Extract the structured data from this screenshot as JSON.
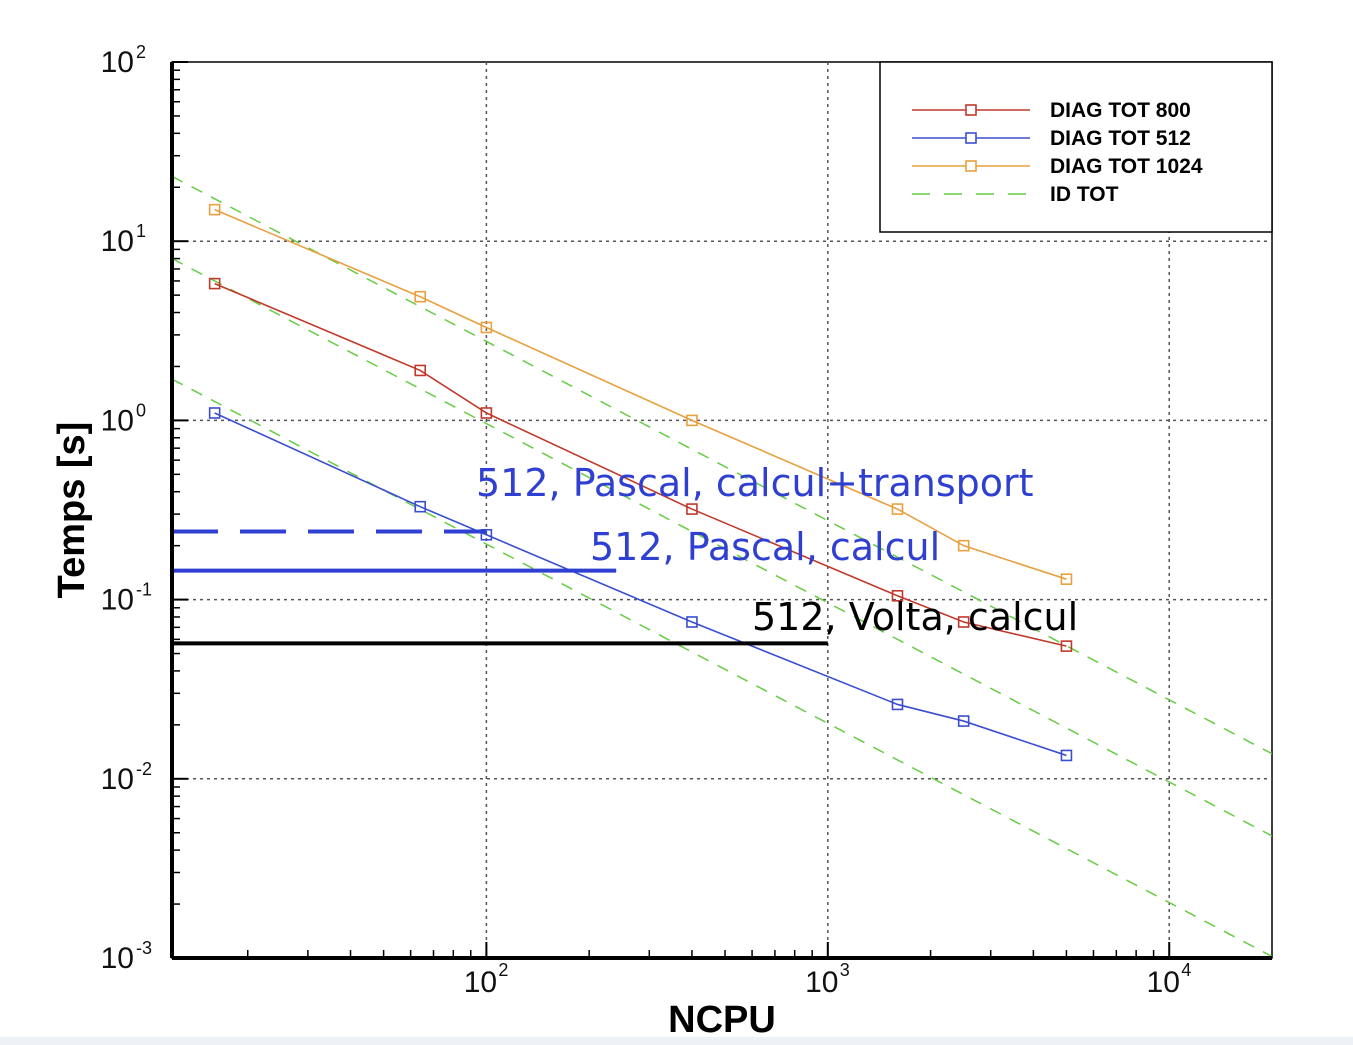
{
  "chart_data": {
    "type": "line",
    "xlabel": "NCPU",
    "ylabel": "Temps [s]",
    "x_scale": "log",
    "y_scale": "log",
    "xlim": [
      12,
      20000
    ],
    "ylim": [
      0.001,
      100
    ],
    "grid": true,
    "legend_placement": "top-right",
    "x_ticks": [
      {
        "value": 100,
        "base": "10",
        "exp": "2"
      },
      {
        "value": 1000,
        "base": "10",
        "exp": "3"
      },
      {
        "value": 10000,
        "base": "10",
        "exp": "4"
      }
    ],
    "y_ticks": [
      {
        "value": 100,
        "base": "10",
        "exp": "2"
      },
      {
        "value": 10,
        "base": "10",
        "exp": "1"
      },
      {
        "value": 1,
        "base": "10",
        "exp": "0"
      },
      {
        "value": 0.1,
        "base": "10",
        "exp": "-1"
      },
      {
        "value": 0.01,
        "base": "10",
        "exp": "-2"
      },
      {
        "value": 0.001,
        "base": "10",
        "exp": "-3"
      }
    ],
    "series": [
      {
        "name": "DIAG TOT 800",
        "color": "#c0392b",
        "marker": "square",
        "x": [
          16,
          64,
          100,
          400,
          1600,
          2500,
          5000
        ],
        "y": [
          5.8,
          1.9,
          1.1,
          0.32,
          0.105,
          0.075,
          0.055
        ]
      },
      {
        "name": "DIAG TOT 512",
        "color": "#3a4fd0",
        "marker": "square",
        "x": [
          16,
          64,
          100,
          400,
          1600,
          2500,
          5000
        ],
        "y": [
          1.1,
          0.33,
          0.23,
          0.075,
          0.026,
          0.021,
          0.0135
        ]
      },
      {
        "name": "DIAG TOT 1024",
        "color": "#e8a040",
        "marker": "square",
        "x": [
          16,
          64,
          100,
          400,
          1600,
          2500,
          5000
        ],
        "y": [
          15,
          4.9,
          3.3,
          1.0,
          0.32,
          0.2,
          0.13
        ]
      },
      {
        "name": "ID TOT",
        "color": "#66cc44",
        "dashed": true,
        "lines": [
          {
            "x": [
              12,
              20000
            ],
            "y": [
              23,
              0.0138
            ]
          },
          {
            "x": [
              12,
              20000
            ],
            "y": [
              8,
              0.0048
            ]
          },
          {
            "x": [
              12,
              20000
            ],
            "y": [
              1.7,
              0.00102
            ]
          }
        ]
      }
    ],
    "reference_lines": [
      {
        "text": "512, Pascal, calcul+transport",
        "color": "#2e3fd1",
        "style": "dashed",
        "y": 0.24,
        "x_end": 100
      },
      {
        "text": "512, Pascal, calcul",
        "color": "#2e3fd1",
        "style": "solid",
        "y": 0.145,
        "x_end": 240
      },
      {
        "text": "512, Volta, calcul",
        "color": "#000000",
        "style": "solid",
        "y": 0.057,
        "x_end": 1000
      }
    ]
  }
}
